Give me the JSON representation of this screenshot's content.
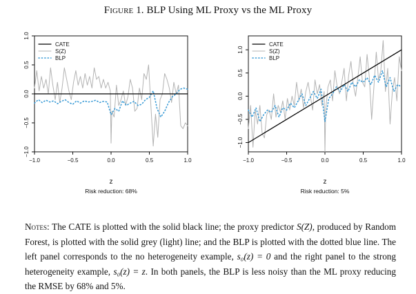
{
  "figure": {
    "label": "Figure 1.",
    "title": "BLP Using ML Proxy vs the ML Proxy"
  },
  "colors": {
    "cate": "#000000",
    "sz": "#b3b3b3",
    "blp": "#3a9bd6"
  },
  "chart_data": [
    {
      "type": "line",
      "panel": "left",
      "xlabel": "z",
      "subtitle": "Risk reduction: 68%",
      "xlim": [
        -1,
        1
      ],
      "ylim": [
        -1,
        1
      ],
      "xticks": [
        -1.0,
        -0.5,
        0.0,
        0.5,
        1.0
      ],
      "xtick_labels": [
        "−1.0",
        "−0.5",
        "0.0",
        "0.5",
        "1.0"
      ],
      "yticks": [
        -1.0,
        -0.5,
        0.0,
        0.5,
        1.0
      ],
      "ytick_labels": [
        "−1.0",
        "−0.5",
        "0.0",
        "0.5",
        "1.0"
      ],
      "legend": {
        "position": "top-left",
        "entries": [
          "CATE",
          "S(Z)",
          "BLP"
        ]
      },
      "series": [
        {
          "name": "CATE",
          "style": "solid-black",
          "x": [
            -1,
            1
          ],
          "y": [
            0,
            0
          ]
        },
        {
          "name": "S(Z)",
          "style": "solid-grey",
          "x": [
            -1,
            -0.97,
            -0.94,
            -0.91,
            -0.88,
            -0.85,
            -0.82,
            -0.79,
            -0.76,
            -0.73,
            -0.7,
            -0.67,
            -0.64,
            -0.61,
            -0.58,
            -0.55,
            -0.52,
            -0.49,
            -0.46,
            -0.43,
            -0.4,
            -0.37,
            -0.34,
            -0.31,
            -0.28,
            -0.25,
            -0.22,
            -0.19,
            -0.16,
            -0.13,
            -0.1,
            -0.07,
            -0.04,
            -0.01,
            0.0,
            0.01,
            0.04,
            0.07,
            0.1,
            0.13,
            0.16,
            0.19,
            0.22,
            0.25,
            0.28,
            0.31,
            0.34,
            0.37,
            0.4,
            0.43,
            0.46,
            0.49,
            0.52,
            0.55,
            0.58,
            0.61,
            0.64,
            0.67,
            0.7,
            0.73,
            0.76,
            0.79,
            0.82,
            0.85,
            0.88,
            0.91,
            0.94,
            0.97,
            1.0
          ],
          "y": [
            0.1,
            0.4,
            0.05,
            0.3,
            0.1,
            0.25,
            0.0,
            0.45,
            0.15,
            -0.1,
            0.2,
            -0.15,
            0.1,
            0.45,
            0.25,
            0.05,
            -0.1,
            0.2,
            0.4,
            0.15,
            0.3,
            0.1,
            0.35,
            0.15,
            0.3,
            0.1,
            0.45,
            0.25,
            0.3,
            0.1,
            0.25,
            0.1,
            0.2,
            0.05,
            -0.85,
            -0.3,
            -0.4,
            0.15,
            -0.2,
            -0.1,
            0.05,
            -0.2,
            -0.05,
            0.25,
            0.1,
            -0.3,
            -0.25,
            0.1,
            -0.1,
            0.35,
            0.25,
            0.5,
            -0.2,
            -0.9,
            -0.35,
            -0.75,
            -0.1,
            0.0,
            0.35,
            0.25,
            0.1,
            -0.15,
            0.2,
            0.0,
            0.15,
            -0.55,
            -0.6,
            -0.5,
            -0.55
          ]
        },
        {
          "name": "BLP",
          "style": "dotted-blue",
          "x": [
            -1,
            -0.95,
            -0.9,
            -0.85,
            -0.8,
            -0.75,
            -0.7,
            -0.65,
            -0.6,
            -0.55,
            -0.5,
            -0.45,
            -0.4,
            -0.35,
            -0.3,
            -0.25,
            -0.2,
            -0.15,
            -0.1,
            -0.05,
            0.0,
            0.05,
            0.1,
            0.15,
            0.2,
            0.25,
            0.3,
            0.35,
            0.4,
            0.45,
            0.5,
            0.55,
            0.6,
            0.65,
            0.7,
            0.75,
            0.8,
            0.85,
            0.9,
            0.95,
            1.0
          ],
          "y": [
            -0.16,
            -0.1,
            -0.15,
            -0.11,
            -0.14,
            -0.12,
            -0.17,
            -0.13,
            -0.1,
            -0.15,
            -0.18,
            -0.12,
            -0.16,
            -0.12,
            -0.14,
            -0.13,
            -0.11,
            -0.15,
            -0.13,
            -0.14,
            -0.36,
            -0.25,
            -0.3,
            -0.12,
            -0.2,
            -0.16,
            -0.13,
            -0.2,
            -0.18,
            -0.1,
            -0.06,
            0.05,
            -0.25,
            -0.4,
            -0.3,
            -0.15,
            -0.05,
            0.0,
            0.08,
            0.1,
            0.08
          ]
        }
      ]
    },
    {
      "type": "line",
      "panel": "right",
      "xlabel": "z",
      "subtitle": "Risk reduction: 5%",
      "xlim": [
        -1,
        1
      ],
      "ylim": [
        -1.2,
        1.3
      ],
      "xticks": [
        -1.0,
        -0.5,
        0.0,
        0.5,
        1.0
      ],
      "xtick_labels": [
        "−1.0",
        "−0.5",
        "0.0",
        "0.5",
        "1.0"
      ],
      "yticks": [
        -1.0,
        -0.5,
        0.0,
        0.5,
        1.0
      ],
      "ytick_labels": [
        "−1.0",
        "−0.5",
        "0.0",
        "0.5",
        "1.0"
      ],
      "legend": {
        "position": "top-left",
        "entries": [
          "CATE",
          "S(Z)",
          "BLP"
        ]
      },
      "series": [
        {
          "name": "CATE",
          "style": "solid-black",
          "x": [
            -1,
            1
          ],
          "y": [
            -1,
            1
          ]
        },
        {
          "name": "S(Z)",
          "style": "solid-grey",
          "x": [
            -1,
            -0.97,
            -0.94,
            -0.91,
            -0.88,
            -0.85,
            -0.82,
            -0.79,
            -0.76,
            -0.73,
            -0.7,
            -0.67,
            -0.64,
            -0.61,
            -0.58,
            -0.55,
            -0.52,
            -0.49,
            -0.46,
            -0.43,
            -0.4,
            -0.37,
            -0.34,
            -0.31,
            -0.28,
            -0.25,
            -0.22,
            -0.19,
            -0.16,
            -0.13,
            -0.1,
            -0.07,
            -0.04,
            -0.01,
            0.0,
            0.01,
            0.04,
            0.07,
            0.1,
            0.13,
            0.16,
            0.19,
            0.22,
            0.25,
            0.28,
            0.31,
            0.34,
            0.37,
            0.4,
            0.43,
            0.46,
            0.49,
            0.52,
            0.55,
            0.58,
            0.61,
            0.64,
            0.67,
            0.7,
            0.73,
            0.76,
            0.79,
            0.82,
            0.85,
            0.88,
            0.91,
            0.94,
            0.97,
            1.0
          ],
          "y": [
            -0.7,
            -0.2,
            -1.1,
            -0.3,
            -0.6,
            -0.2,
            -0.8,
            -0.9,
            -0.4,
            -0.3,
            -0.5,
            0.05,
            -0.45,
            -0.2,
            -0.35,
            -0.1,
            -0.5,
            -0.05,
            -0.3,
            0.0,
            -0.2,
            0.3,
            -0.1,
            0.15,
            -0.25,
            0.1,
            0.3,
            0.0,
            -0.3,
            0.35,
            0.05,
            0.25,
            -0.2,
            0.1,
            -1.2,
            -0.3,
            0.2,
            0.35,
            -0.1,
            0.55,
            0.2,
            0.05,
            0.3,
            0.6,
            -0.1,
            0.45,
            0.75,
            0.25,
            0.0,
            0.4,
            0.85,
            0.3,
            0.2,
            0.9,
            0.4,
            -0.5,
            0.2,
            0.95,
            0.35,
            0.55,
            1.2,
            0.1,
            0.6,
            -0.6,
            0.1,
            0.4,
            -0.1,
            0.85,
            0.55
          ]
        },
        {
          "name": "BLP",
          "style": "dotted-blue",
          "x": [
            -1,
            -0.95,
            -0.9,
            -0.85,
            -0.8,
            -0.75,
            -0.7,
            -0.65,
            -0.6,
            -0.55,
            -0.5,
            -0.45,
            -0.4,
            -0.35,
            -0.3,
            -0.25,
            -0.2,
            -0.15,
            -0.1,
            -0.05,
            0.0,
            0.05,
            0.1,
            0.15,
            0.2,
            0.25,
            0.3,
            0.35,
            0.4,
            0.45,
            0.5,
            0.55,
            0.6,
            0.65,
            0.7,
            0.75,
            0.8,
            0.85,
            0.9,
            0.95,
            1.0
          ],
          "y": [
            -0.3,
            -0.45,
            -0.25,
            -0.55,
            -0.4,
            -0.3,
            -0.35,
            -0.2,
            -0.45,
            -0.25,
            -0.3,
            -0.15,
            -0.25,
            -0.1,
            0.05,
            -0.2,
            -0.05,
            0.1,
            -0.05,
            0.15,
            -0.55,
            -0.05,
            0.05,
            0.2,
            0.1,
            0.25,
            0.1,
            0.3,
            0.2,
            0.35,
            0.3,
            0.4,
            0.25,
            0.45,
            0.3,
            0.55,
            0.2,
            0.4,
            0.1,
            0.25,
            0.2
          ]
        }
      ]
    }
  ],
  "notes": {
    "label": "Notes:",
    "p1": " The CATE is plotted with the solid black line; the proxy predictor ",
    "sz": "S(Z)",
    "p2": ", produced by Random Forest, is plotted with the solid grey (light) line; and the BLP is plotted with the dotted blue line. The left panel corresponds to the no heterogeneity example, ",
    "eq1": "s₀(z) = 0",
    "p3": " and the right panel to the strong heterogeneity example, ",
    "eq2": "s₀(z) = z",
    "p4": ". In both panels, the BLP is less noisy than the ML proxy reducing the RMSE by 68% and 5%."
  }
}
